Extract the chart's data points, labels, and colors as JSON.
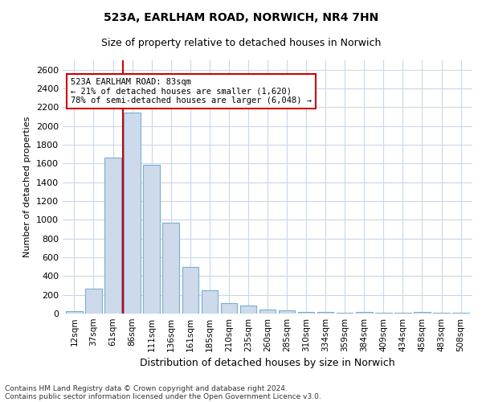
{
  "title1": "523A, EARLHAM ROAD, NORWICH, NR4 7HN",
  "title2": "Size of property relative to detached houses in Norwich",
  "xlabel": "Distribution of detached houses by size in Norwich",
  "ylabel": "Number of detached properties",
  "categories": [
    "12sqm",
    "37sqm",
    "61sqm",
    "86sqm",
    "111sqm",
    "136sqm",
    "161sqm",
    "185sqm",
    "210sqm",
    "235sqm",
    "260sqm",
    "285sqm",
    "310sqm",
    "334sqm",
    "359sqm",
    "384sqm",
    "409sqm",
    "434sqm",
    "458sqm",
    "483sqm",
    "508sqm"
  ],
  "values": [
    30,
    270,
    1660,
    2140,
    1590,
    970,
    500,
    250,
    115,
    90,
    40,
    35,
    20,
    20,
    10,
    20,
    5,
    5,
    15,
    5,
    5
  ],
  "bar_color": "#ccdaeb",
  "bar_edge_color": "#7aaed0",
  "grid_color": "#c8d8e8",
  "background_color": "#ffffff",
  "annotation_text": "523A EARLHAM ROAD: 83sqm\n← 21% of detached houses are smaller (1,620)\n78% of semi-detached houses are larger (6,048) →",
  "annotation_box_color": "#ffffff",
  "annotation_box_edge_color": "#cc0000",
  "vline_color": "#cc0000",
  "footnote1": "Contains HM Land Registry data © Crown copyright and database right 2024.",
  "footnote2": "Contains public sector information licensed under the Open Government Licence v3.0.",
  "ylim": [
    0,
    2700
  ],
  "yticks": [
    0,
    200,
    400,
    600,
    800,
    1000,
    1200,
    1400,
    1600,
    1800,
    2000,
    2200,
    2400,
    2600
  ]
}
